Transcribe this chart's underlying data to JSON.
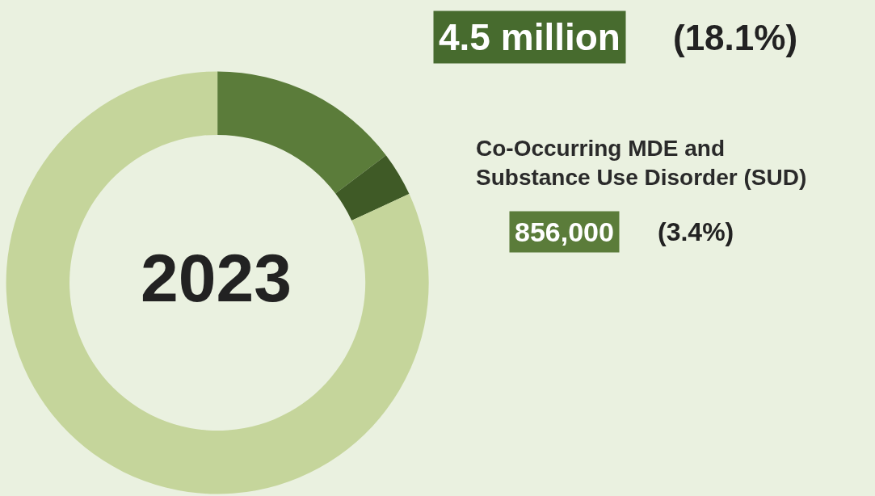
{
  "chart_data": {
    "type": "donut",
    "categories": [
      null,
      null,
      null
    ],
    "values": [
      14.7,
      3.4,
      81.9
    ],
    "colors": [
      "#5b7c3a",
      "#3f5a26",
      "#c5d59b"
    ],
    "annotations": [
      "2023",
      "4.5 million",
      "(18.1%)",
      "Co-Occurring MDE and\nSubstance Use Disorder (SUD)",
      "856,000",
      "(3.4%)"
    ],
    "legend": false
  }
}
